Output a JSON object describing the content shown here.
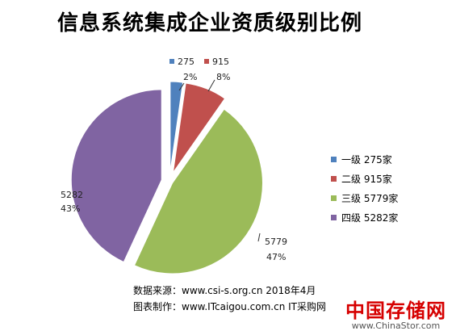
{
  "title": "信息系统集成企业资质级别比例",
  "chart_data": {
    "type": "pie",
    "title": "信息系统集成企业资质级别比例",
    "slices": [
      {
        "legend": "一级 275家",
        "value": 275,
        "value_label": "275",
        "percent_label": "2%",
        "color": "#4f81bd"
      },
      {
        "legend": "二级 915家",
        "value": 915,
        "value_label": "915",
        "percent_label": "8%",
        "color": "#c0504d"
      },
      {
        "legend": "三级 5779家",
        "value": 5779,
        "value_label": "5779",
        "percent_label": "47%",
        "color": "#9bbb59"
      },
      {
        "legend": "四级 5282家",
        "value": 5282,
        "value_label": "5282",
        "percent_label": "43%",
        "color": "#8064a2"
      }
    ],
    "legend_position": "right",
    "exploded": true
  },
  "notes": {
    "source": "数据来源：www.csi-s.org.cn  2018年4月",
    "maker": "图表制作：www.ITcaigou.com.cn  IT采购网"
  },
  "watermark": {
    "logo": "中国存储网",
    "url": "www.ChinaStor.com"
  }
}
